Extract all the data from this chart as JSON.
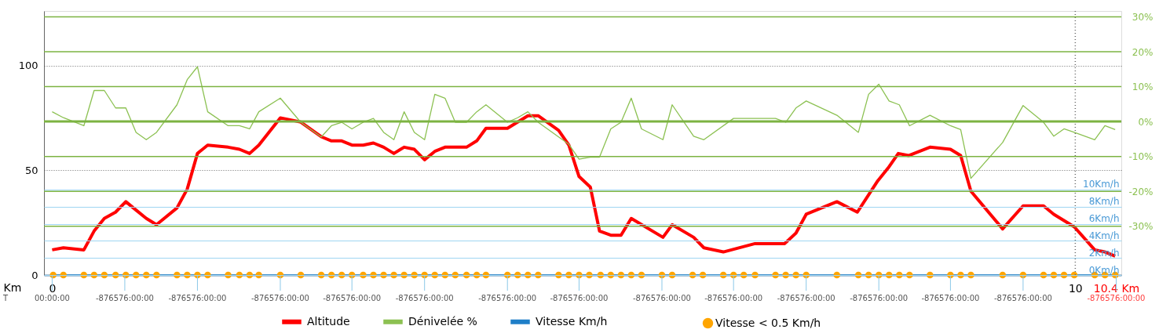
{
  "chart_data": {
    "type": "line",
    "xlabel": "Km",
    "xlim": [
      -0.08,
      10.45
    ],
    "xticks": [
      0,
      10,
      {
        "value": 10.4,
        "label": "10.4 Km"
      }
    ],
    "annotations": [
      "T",
      {
        "text": "00:00:00",
        "x": 0
      },
      {
        "text": "-876576:00:00",
        "x": 0.71
      },
      {
        "text": "-876576:00:00",
        "x": 1.42
      },
      {
        "text": "-876576:00:00",
        "x": 2.23
      },
      {
        "text": "-876576:00:00",
        "x": 2.93
      },
      {
        "text": "-876576:00:00",
        "x": 3.64
      },
      {
        "text": "-876576:00:00",
        "x": 4.45
      },
      {
        "text": "-876576:00:00",
        "x": 5.15
      },
      {
        "text": "-876576:00:00",
        "x": 5.96
      },
      {
        "text": "-876576:00:00",
        "x": 6.66
      },
      {
        "text": "-876576:00:00",
        "x": 7.37
      },
      {
        "text": "-876576:00:00",
        "x": 8.08
      },
      {
        "text": "-876576:00:00",
        "x": 8.78
      },
      {
        "text": "-876576:00:00",
        "x": 9.49
      },
      {
        "text": "-876576:00:00",
        "x": 10.4
      }
    ],
    "ylim": [
      0,
      126
    ],
    "yticks": [
      0,
      50,
      100
    ],
    "y2lim": [
      -44,
      31.7
    ],
    "y2ticks": [
      {
        "value": 30,
        "label": "30%"
      },
      {
        "value": 20,
        "label": "20%"
      },
      {
        "value": 10,
        "label": "10%"
      },
      {
        "value": 0,
        "label": "0%"
      },
      {
        "value": -10,
        "label": "-10%"
      },
      {
        "value": -20,
        "label": "-20%"
      },
      {
        "value": -30,
        "label": "-30%"
      }
    ],
    "y3lim": [
      0,
      30.9
    ],
    "y3ticks": [
      {
        "value": 0,
        "label": "0Km/h"
      },
      {
        "value": 2,
        "label": "2Km/h"
      },
      {
        "value": 4,
        "label": "4Km/h"
      },
      {
        "value": 6,
        "label": "6Km/h"
      },
      {
        "value": 8,
        "label": "8Km/h"
      },
      {
        "value": 10,
        "label": "10Km/h"
      }
    ],
    "grid": "y",
    "legend": "bottom",
    "ref_lines": [
      {
        "axis": "x",
        "value": 10,
        "color": "#666666",
        "line_style": "dotted"
      },
      {
        "axis": "y2",
        "value": 30,
        "color": "#7cb342"
      },
      {
        "axis": "y2",
        "value": 20,
        "color": "#7cb342"
      },
      {
        "axis": "y2",
        "value": 10,
        "color": "#7cb342"
      },
      {
        "axis": "y2",
        "value": 0,
        "color": "#7cb342"
      },
      {
        "axis": "y2",
        "value": -10,
        "color": "#7cb342"
      },
      {
        "axis": "y2",
        "value": -20,
        "color": "#7cb342"
      },
      {
        "axis": "y2",
        "value": -30,
        "color": "#7cb342"
      }
    ],
    "series": [
      {
        "name": "Altitude",
        "color": "#ff0000",
        "axis": "y",
        "x": [
          0.0,
          0.11,
          0.31,
          0.41,
          0.51,
          0.62,
          0.72,
          0.82,
          0.92,
          1.02,
          1.22,
          1.32,
          1.42,
          1.52,
          1.72,
          1.83,
          1.93,
          2.02,
          2.23,
          2.43,
          2.63,
          2.73,
          2.83,
          2.93,
          3.04,
          3.14,
          3.24,
          3.34,
          3.44,
          3.54,
          3.64,
          3.74,
          3.84,
          4.05,
          4.15,
          4.24,
          4.45,
          4.55,
          4.65,
          4.75,
          4.95,
          5.05,
          5.15,
          5.26,
          5.35,
          5.46,
          5.56,
          5.66,
          5.97,
          6.06,
          6.27,
          6.37,
          6.56,
          6.87,
          7.16,
          7.27,
          7.37,
          7.67,
          7.87,
          8.07,
          8.17,
          8.27,
          8.37,
          8.58,
          8.78,
          8.88,
          8.98,
          9.29,
          9.49,
          9.69,
          9.79,
          9.89,
          9.99,
          10.19,
          10.29,
          10.39
        ],
        "values": [
          12,
          13,
          12,
          21,
          27,
          30,
          35,
          31,
          27,
          24,
          32,
          41,
          58,
          62,
          61,
          60,
          58,
          62,
          75,
          73,
          66,
          64,
          64,
          62,
          62,
          63,
          61,
          58,
          61,
          60,
          55,
          59,
          61,
          61,
          64,
          70,
          70,
          73,
          76,
          76,
          69,
          62,
          47,
          42,
          21,
          19,
          19,
          27,
          18,
          24,
          18,
          13,
          11,
          15,
          15,
          20,
          29,
          35,
          30,
          45,
          51,
          58,
          57,
          61,
          60,
          57,
          40,
          22,
          33,
          33,
          29,
          26,
          23,
          12,
          11,
          9
        ]
      },
      {
        "name": "Dénivelée %",
        "color": "#8cc152",
        "axis": "y2",
        "x": [
          0.0,
          0.11,
          0.31,
          0.41,
          0.51,
          0.62,
          0.72,
          0.82,
          0.92,
          1.02,
          1.22,
          1.32,
          1.42,
          1.52,
          1.72,
          1.83,
          1.93,
          2.02,
          2.23,
          2.43,
          2.63,
          2.73,
          2.83,
          2.93,
          3.04,
          3.14,
          3.24,
          3.34,
          3.44,
          3.54,
          3.64,
          3.74,
          3.84,
          3.94,
          4.05,
          4.15,
          4.24,
          4.45,
          4.55,
          4.65,
          4.75,
          4.95,
          5.05,
          5.15,
          5.26,
          5.35,
          5.46,
          5.56,
          5.66,
          5.76,
          5.97,
          6.06,
          6.27,
          6.37,
          6.66,
          7.07,
          7.17,
          7.27,
          7.37,
          7.67,
          7.88,
          7.98,
          8.08,
          8.18,
          8.28,
          8.38,
          8.58,
          8.78,
          8.88,
          8.98,
          9.29,
          9.49,
          9.69,
          9.79,
          9.89,
          9.99,
          10.19,
          10.29,
          10.39
        ],
        "values": [
          2.8,
          1.1,
          -1.2,
          8.9,
          8.9,
          3.9,
          3.9,
          -3.1,
          -5.2,
          -3.1,
          4.8,
          12,
          15.7,
          2.8,
          -1.2,
          -1.2,
          -2.1,
          2.8,
          6.7,
          -0.2,
          -4.4,
          -1.2,
          -0.2,
          -2.1,
          -0.2,
          0.9,
          -3.1,
          -5.2,
          2.8,
          -3.1,
          -5.2,
          7.8,
          6.7,
          -0.2,
          -0.2,
          2.8,
          4.8,
          -0.2,
          1.1,
          2.8,
          -0.2,
          -4.4,
          -6.5,
          -10.8,
          -10.2,
          -10.2,
          -2.1,
          -0.2,
          6.7,
          -2.1,
          -5.2,
          4.8,
          -4.2,
          -5.2,
          0.9,
          0.9,
          -0.2,
          3.9,
          5.9,
          1.8,
          -3.1,
          7.8,
          10.7,
          5.9,
          4.8,
          -1.2,
          1.8,
          -1.2,
          -2.3,
          -16.3,
          -6.0,
          4.6,
          -0.2,
          -4.2,
          -2.1,
          -3.1,
          -5.2,
          -1.2,
          -2.3
        ]
      },
      {
        "name": "Vitesse Km/h",
        "color": "#1f7fc8",
        "axis": "y3",
        "x": [
          0.0,
          10.39
        ],
        "values": [
          0,
          0
        ]
      },
      {
        "name": "Vitesse < 0.5 Km/h",
        "color": "#ffa500",
        "axis": "y3",
        "type": "scatter",
        "marker": "circle",
        "x": [
          0.01,
          0.11,
          0.31,
          0.41,
          0.51,
          0.62,
          0.72,
          0.82,
          0.92,
          1.02,
          1.22,
          1.32,
          1.42,
          1.52,
          1.72,
          1.83,
          1.93,
          2.02,
          2.23,
          2.43,
          2.63,
          2.73,
          2.83,
          2.93,
          3.04,
          3.14,
          3.24,
          3.34,
          3.44,
          3.54,
          3.64,
          3.74,
          3.84,
          3.94,
          4.05,
          4.15,
          4.24,
          4.45,
          4.55,
          4.65,
          4.75,
          4.95,
          5.05,
          5.15,
          5.25,
          5.36,
          5.46,
          5.56,
          5.66,
          5.76,
          5.96,
          6.06,
          6.26,
          6.36,
          6.56,
          6.66,
          6.76,
          6.87,
          7.07,
          7.17,
          7.27,
          7.37,
          7.67,
          7.88,
          7.98,
          8.08,
          8.18,
          8.28,
          8.38,
          8.58,
          8.78,
          8.88,
          8.98,
          9.29,
          9.49,
          9.69,
          9.79,
          9.89,
          9.99,
          10.19,
          10.29,
          10.39
        ],
        "values": [
          0,
          0,
          0,
          0,
          0,
          0,
          0,
          0,
          0,
          0,
          0,
          0,
          0,
          0,
          0,
          0,
          0,
          0,
          0,
          0,
          0,
          0,
          0,
          0,
          0,
          0,
          0,
          0,
          0,
          0,
          0,
          0,
          0,
          0,
          0,
          0,
          0,
          0,
          0,
          0,
          0,
          0,
          0,
          0,
          0,
          0,
          0,
          0,
          0,
          0,
          0,
          0,
          0,
          0,
          0,
          0,
          0,
          0,
          0,
          0,
          0,
          0,
          0,
          0,
          0,
          0,
          0,
          0,
          0,
          0,
          0,
          0,
          0,
          0,
          0,
          0,
          0,
          0,
          0,
          0,
          0,
          0
        ]
      }
    ]
  }
}
